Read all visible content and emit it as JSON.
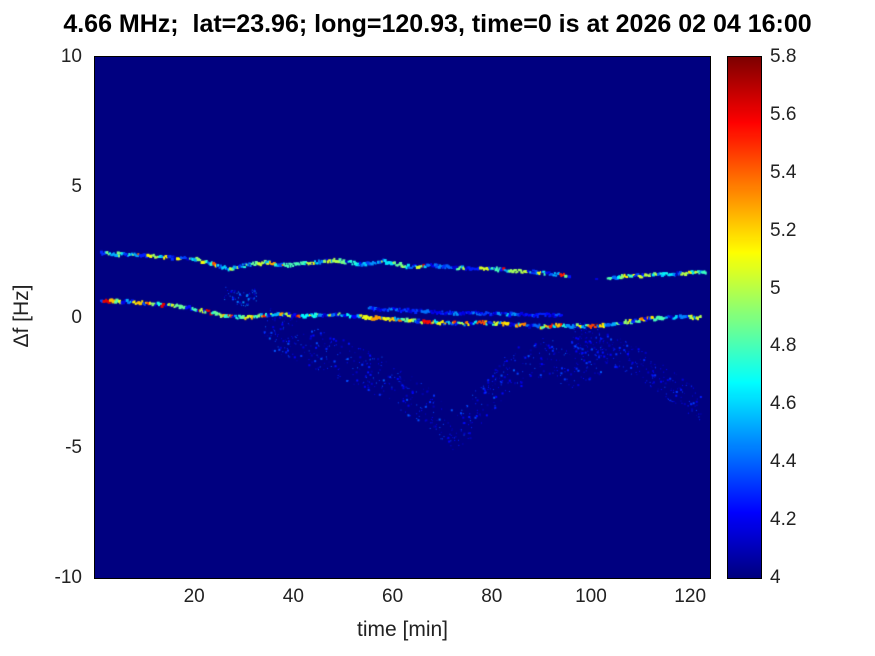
{
  "chart_data": {
    "type": "heatmap",
    "title": "4.66 MHz;  lat=23.96; long=120.93, time=0 is at 2026 02 04 16:00",
    "xlabel": "time [min]",
    "ylabel": "Δf [Hz]",
    "xlim": [
      0,
      124
    ],
    "ylim": [
      -10,
      10
    ],
    "xticks": [
      20,
      40,
      60,
      80,
      100,
      120
    ],
    "yticks": [
      10,
      5,
      0,
      -5,
      -10
    ],
    "colormap": "jet",
    "background_value": 4,
    "colorbar": {
      "min": 4,
      "max": 5.8,
      "ticks": [
        5.8,
        5.6,
        5.4,
        5.2,
        5,
        4.8,
        4.6,
        4.4,
        4.2,
        4
      ]
    },
    "traces": [
      {
        "name": "upper-doppler-trace",
        "points": [
          [
            1,
            2.45
          ],
          [
            8,
            2.4
          ],
          [
            14,
            2.3
          ],
          [
            20,
            2.25
          ],
          [
            24,
            2.0
          ],
          [
            27,
            1.85
          ],
          [
            30,
            2.0
          ],
          [
            34,
            2.1
          ],
          [
            38,
            2.0
          ],
          [
            43,
            2.1
          ],
          [
            48,
            2.2
          ],
          [
            53,
            2.05
          ],
          [
            58,
            2.15
          ],
          [
            63,
            1.95
          ],
          [
            68,
            2.0
          ],
          [
            73,
            1.9
          ],
          [
            78,
            1.9
          ],
          [
            83,
            1.8
          ],
          [
            88,
            1.75
          ],
          [
            93,
            1.65
          ],
          [
            98,
            1.55
          ],
          [
            103,
            1.5
          ],
          [
            108,
            1.6
          ],
          [
            113,
            1.65
          ],
          [
            118,
            1.7
          ],
          [
            123,
            1.75
          ]
        ],
        "value_range": [
          4.3,
          5.15
        ],
        "burst_range": [
          5.2,
          5.7
        ],
        "burst_prob": 0.06,
        "gaps": [
          [
            95,
            103
          ]
        ]
      },
      {
        "name": "lower-doppler-trace",
        "points": [
          [
            1,
            0.65
          ],
          [
            6,
            0.6
          ],
          [
            12,
            0.5
          ],
          [
            18,
            0.4
          ],
          [
            22,
            0.25
          ],
          [
            26,
            0.05
          ],
          [
            30,
            0.0
          ],
          [
            34,
            0.1
          ],
          [
            38,
            0.12
          ],
          [
            42,
            0.05
          ],
          [
            46,
            0.1
          ],
          [
            50,
            0.1
          ],
          [
            54,
            0.0
          ],
          [
            58,
            -0.05
          ],
          [
            62,
            -0.1
          ],
          [
            66,
            -0.15
          ],
          [
            70,
            -0.2
          ],
          [
            74,
            -0.25
          ],
          [
            78,
            -0.2
          ],
          [
            82,
            -0.25
          ],
          [
            86,
            -0.3
          ],
          [
            90,
            -0.35
          ],
          [
            94,
            -0.3
          ],
          [
            98,
            -0.35
          ],
          [
            102,
            -0.3
          ],
          [
            106,
            -0.2
          ],
          [
            110,
            -0.1
          ],
          [
            114,
            0.0
          ],
          [
            118,
            0.02
          ],
          [
            122,
            0.0
          ]
        ],
        "value_range": [
          4.35,
          5.3
        ],
        "burst_range": [
          5.3,
          5.8
        ],
        "burst_prob": 0.12,
        "gaps": []
      },
      {
        "name": "companion-faint-trace",
        "points": [
          [
            55,
            0.35
          ],
          [
            62,
            0.28
          ],
          [
            70,
            0.18
          ],
          [
            78,
            0.15
          ],
          [
            86,
            0.1
          ],
          [
            94,
            0.08
          ]
        ],
        "value_range": [
          4.1,
          4.5
        ],
        "burst_range": [
          4.5,
          4.6
        ],
        "burst_prob": 0.02,
        "gaps": []
      }
    ],
    "scatter_clusters": [
      {
        "name": "multipath-scatter-main",
        "points": [
          [
            34,
            -0.3
          ],
          [
            42,
            -1.0
          ],
          [
            50,
            -1.6
          ],
          [
            58,
            -2.3
          ],
          [
            66,
            -3.3
          ],
          [
            73,
            -4.4
          ],
          [
            78,
            -3.2
          ],
          [
            84,
            -2.0
          ],
          [
            90,
            -1.5
          ],
          [
            96,
            -1.9
          ],
          [
            102,
            -1.3
          ]
        ],
        "jitter": 0.8,
        "count": 650,
        "value_range": [
          4.05,
          4.4
        ]
      },
      {
        "name": "multipath-scatter-right",
        "points": [
          [
            96,
            -0.6
          ],
          [
            104,
            -1.2
          ],
          [
            110,
            -1.8
          ],
          [
            116,
            -2.6
          ],
          [
            122,
            -3.4
          ]
        ],
        "jitter": 0.6,
        "count": 260,
        "value_range": [
          4.05,
          4.35
        ]
      },
      {
        "name": "small-scatter-left",
        "points": [
          [
            26,
            0.9
          ],
          [
            30,
            0.7
          ],
          [
            33,
            0.9
          ]
        ],
        "jitter": 0.3,
        "count": 60,
        "value_range": [
          4.1,
          4.5
        ]
      }
    ]
  }
}
